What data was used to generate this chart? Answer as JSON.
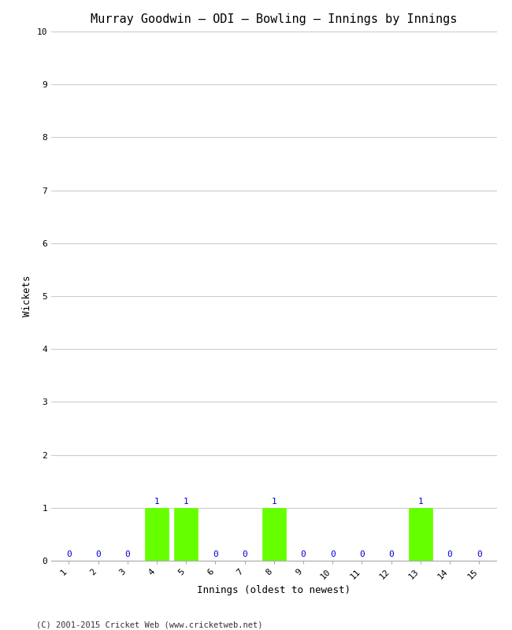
{
  "title": "Murray Goodwin – ODI – Bowling – Innings by Innings",
  "xlabel": "Innings (oldest to newest)",
  "ylabel": "Wickets",
  "categories": [
    1,
    2,
    3,
    4,
    5,
    6,
    7,
    8,
    9,
    10,
    11,
    12,
    13,
    14,
    15
  ],
  "values": [
    0,
    0,
    0,
    1,
    1,
    0,
    0,
    1,
    0,
    0,
    0,
    0,
    1,
    0,
    0
  ],
  "bar_color": "#66ff00",
  "bar_edge_color": "#66ff00",
  "annotation_color": "#0000cc",
  "ylim": [
    0,
    10
  ],
  "yticks": [
    0,
    1,
    2,
    3,
    4,
    5,
    6,
    7,
    8,
    9,
    10
  ],
  "background_color": "#ffffff",
  "grid_color": "#cccccc",
  "title_fontsize": 11,
  "label_fontsize": 9,
  "tick_fontsize": 8,
  "annotation_fontsize": 8,
  "footer": "(C) 2001-2015 Cricket Web (www.cricketweb.net)",
  "footer_fontsize": 7.5
}
